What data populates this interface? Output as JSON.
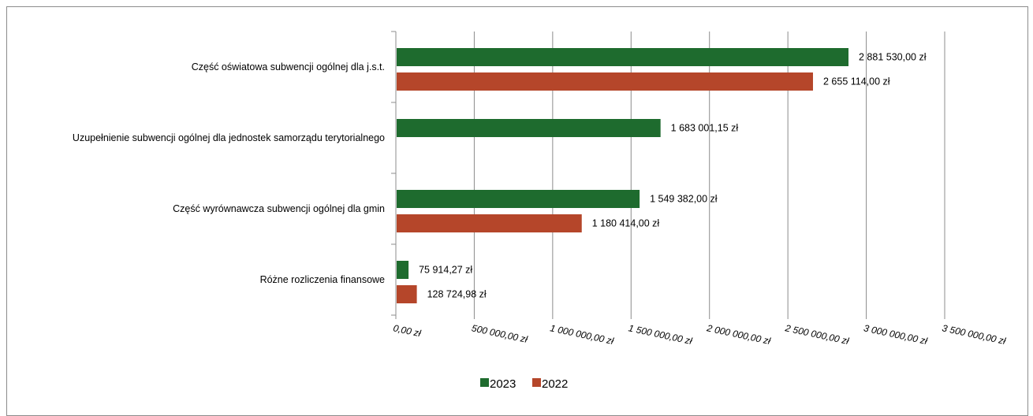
{
  "chart_data": {
    "type": "bar",
    "orientation": "horizontal",
    "title": "",
    "xlabel": "",
    "ylabel": "",
    "xlim": [
      0,
      3500000
    ],
    "grid": true,
    "legend_position": "bottom",
    "categories": [
      "Część oświatowa subwencji ogólnej dla j.s.t.",
      "Uzupełnienie subwencji ogólnej dla jednostek samorządu terytorialnego",
      "Część wyrównawcza subwencji ogólnej dla gmin",
      "Różne rozliczenia finansowe"
    ],
    "ticks": [
      "0,00 zł",
      "500 000,00 zł",
      "1 000 000,00 zł",
      "1 500 000,00 zł",
      "2 000 000,00 zł",
      "2 500 000,00 zł",
      "3 000 000,00 zł",
      "3 500 000,00 zł"
    ],
    "series": [
      {
        "name": "2023",
        "color": "#1e6b2e",
        "values": [
          2881530.0,
          1683001.15,
          1549382.0,
          75914.27
        ],
        "labels": [
          "2 881 530,00 zł",
          "1 683 001,15 zł",
          "1 549 382,00 zł",
          "75 914,27 zł"
        ]
      },
      {
        "name": "2022",
        "color": "#b5462a",
        "values": [
          2655114.0,
          null,
          1180414.0,
          128724.98
        ],
        "labels": [
          "2 655 114,00 zł",
          "",
          "1 180 414,00 zł",
          "128 724,98 zł"
        ]
      }
    ]
  }
}
